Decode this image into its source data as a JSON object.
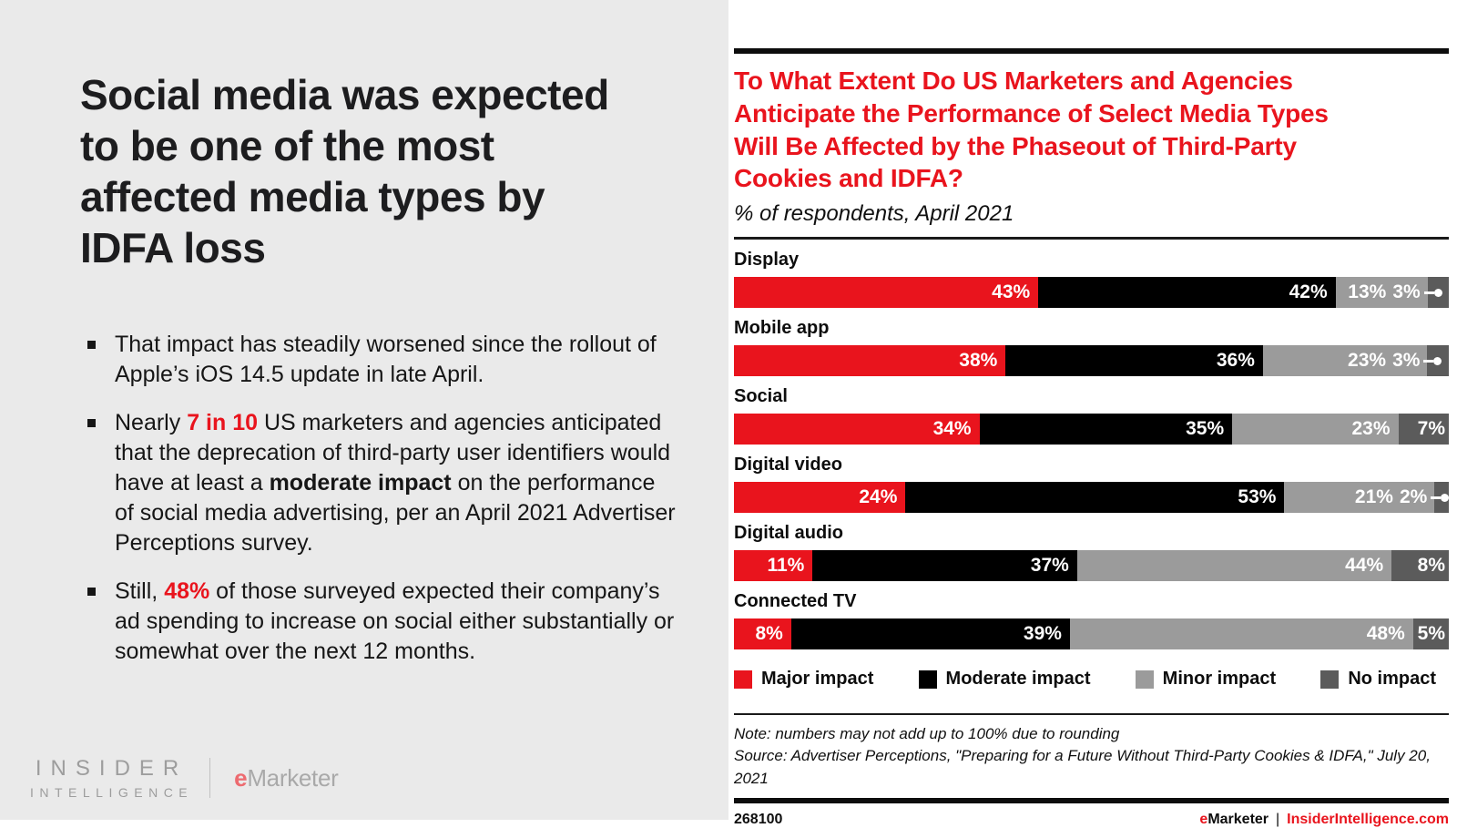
{
  "left_panel": {
    "headline_lines": [
      "Social media was expected",
      "to be one of the most",
      "affected media types by",
      "IDFA loss"
    ],
    "bullets": [
      {
        "runs": [
          {
            "t": "That impact has steadily worsened since the rollout of Apple’s iOS 14.5 update in late April.",
            "s": "n"
          }
        ]
      },
      {
        "runs": [
          {
            "t": "Nearly ",
            "s": "n"
          },
          {
            "t": "7 in 10",
            "s": "rb"
          },
          {
            "t": " US marketers and agencies anticipated that the deprecation of third-party user identifiers would have at least a ",
            "s": "n"
          },
          {
            "t": "moderate impact",
            "s": "b"
          },
          {
            "t": " on the performance of social media advertising, per an April 2021 Advertiser Perceptions survey.",
            "s": "n"
          }
        ]
      },
      {
        "runs": [
          {
            "t": "Still, ",
            "s": "n"
          },
          {
            "t": "48%",
            "s": "rb"
          },
          {
            "t": " of those surveyed expected their company’s ad spending to increase on social either substantially or somewhat over the next 12 months.",
            "s": "n"
          }
        ]
      }
    ],
    "logo": {
      "insider": "INSIDER",
      "intelligence": "INTELLIGENCE",
      "emarketer_e": "e",
      "emarketer_rest": "Marketer"
    }
  },
  "chart": {
    "title_lines": [
      "To What Extent Do US Marketers and Agencies",
      "Anticipate the Performance of Select Media Types",
      "Will Be Affected by the Phaseout of Third-Party",
      "Cookies and IDFA?"
    ],
    "subtitle": "% of respondents, April 2021",
    "note": "Note: numbers may not add up to 100% due to rounding",
    "source": "Source: Advertiser Perceptions, \"Preparing for a Future Without Third-Party Cookies & IDFA,\" July 20, 2021",
    "chart_id": "268100",
    "footer_brand": {
      "e": "e",
      "marketer": "Marketer",
      "sep": "|",
      "site": "InsiderIntelligence.com"
    }
  },
  "chart_data": {
    "type": "bar",
    "orientation": "horizontal-stacked",
    "unit": "%",
    "title": "To What Extent Do US Marketers and Agencies Anticipate the Performance of Select Media Types Will Be Affected by the Phaseout of Third-Party Cookies and IDFA?",
    "subtitle": "% of respondents, April 2021",
    "categories": [
      "Display",
      "Mobile app",
      "Social",
      "Digital video",
      "Digital audio",
      "Connected TV"
    ],
    "series": [
      {
        "name": "Major impact",
        "color": "#e9141d",
        "values": [
          43,
          38,
          34,
          24,
          11,
          8
        ]
      },
      {
        "name": "Moderate impact",
        "color": "#000000",
        "values": [
          42,
          36,
          35,
          53,
          37,
          39
        ]
      },
      {
        "name": "Minor impact",
        "color": "#9b9b9b",
        "values": [
          13,
          23,
          23,
          21,
          44,
          48
        ]
      },
      {
        "name": "No impact",
        "color": "#5b5b5b",
        "values": [
          3,
          3,
          7,
          2,
          8,
          5
        ]
      }
    ],
    "callout_rows": [
      0,
      1,
      3
    ],
    "legend_position": "bottom",
    "grid": false,
    "value_labels": "inside-right, white bold"
  }
}
